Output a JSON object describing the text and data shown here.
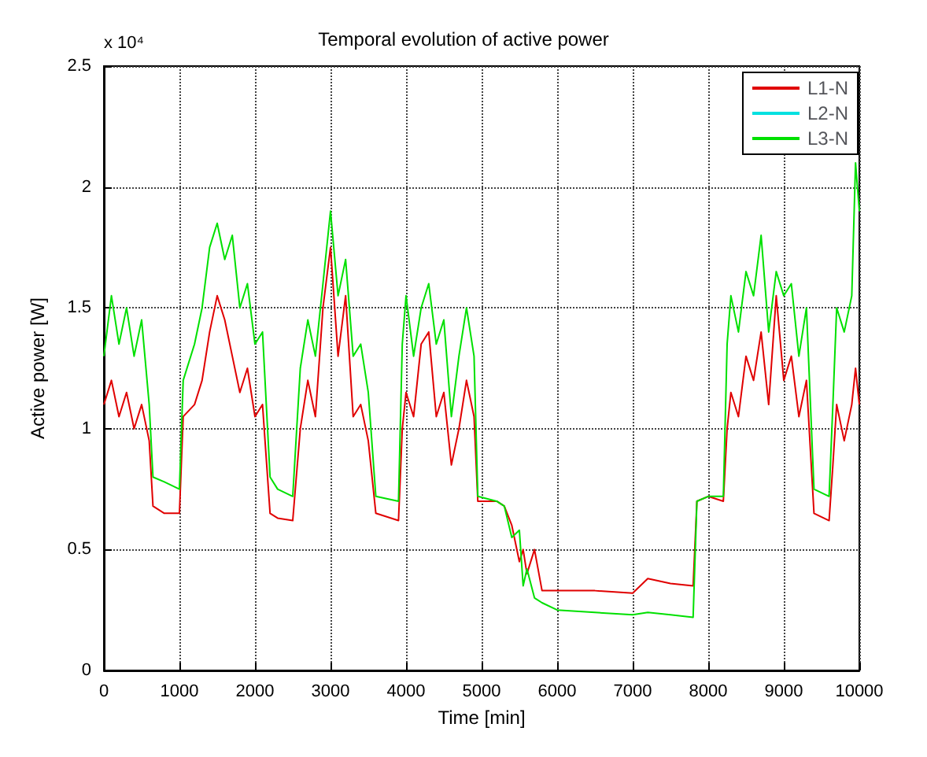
{
  "chart_data": {
    "type": "line",
    "title": "Temporal evolution of active power",
    "xlabel": "Time [min]",
    "ylabel": "Active power [W]",
    "annotations": [
      "x 10⁴"
    ],
    "x": [
      0,
      100,
      200,
      300,
      400,
      500,
      600,
      650,
      800,
      1000,
      1050,
      1200,
      1300,
      1400,
      1500,
      1600,
      1700,
      1800,
      1900,
      2000,
      2100,
      2200,
      2300,
      2500,
      2600,
      2700,
      2800,
      2900,
      3000,
      3100,
      3200,
      3300,
      3400,
      3500,
      3600,
      3900,
      3950,
      4000,
      4100,
      4200,
      4300,
      4400,
      4500,
      4600,
      4700,
      4800,
      4900,
      4950,
      5200,
      5300,
      5400,
      5500,
      5550,
      5600,
      5700,
      5800,
      6000,
      6500,
      7000,
      7200,
      7500,
      7800,
      7850,
      8000,
      8200,
      8250,
      8300,
      8400,
      8500,
      8600,
      8700,
      8800,
      8900,
      9000,
      9100,
      9200,
      9300,
      9400,
      9600,
      9650,
      9700,
      9800,
      9900,
      9950,
      10000
    ],
    "series": [
      {
        "name": "L1-N",
        "color": "#e00000",
        "values": [
          1.1,
          1.2,
          1.05,
          1.15,
          1.0,
          1.1,
          0.95,
          0.68,
          0.65,
          0.65,
          1.05,
          1.1,
          1.2,
          1.4,
          1.55,
          1.45,
          1.3,
          1.15,
          1.25,
          1.05,
          1.1,
          0.65,
          0.63,
          0.62,
          1.0,
          1.2,
          1.05,
          1.5,
          1.75,
          1.3,
          1.55,
          1.05,
          1.1,
          0.95,
          0.65,
          0.62,
          1.0,
          1.15,
          1.05,
          1.35,
          1.4,
          1.05,
          1.15,
          0.85,
          1.0,
          1.2,
          1.05,
          0.7,
          0.7,
          0.68,
          0.6,
          0.45,
          0.5,
          0.4,
          0.5,
          0.33,
          0.33,
          0.33,
          0.32,
          0.38,
          0.36,
          0.35,
          0.7,
          0.72,
          0.7,
          1.0,
          1.15,
          1.05,
          1.3,
          1.2,
          1.4,
          1.1,
          1.55,
          1.2,
          1.3,
          1.05,
          1.2,
          0.65,
          0.62,
          0.85,
          1.1,
          0.95,
          1.1,
          1.25,
          1.1
        ]
      },
      {
        "name": "L2-N",
        "color": "#00e0e0",
        "values": [
          null,
          null,
          null,
          null,
          null,
          null,
          null,
          null,
          null,
          null,
          null,
          null,
          null,
          null,
          null,
          null,
          null,
          null,
          null,
          null,
          null,
          null,
          null,
          null,
          null,
          null,
          null,
          null,
          null,
          null,
          null,
          null,
          null,
          null,
          null,
          null,
          null,
          null,
          null,
          null,
          null,
          null,
          null,
          null,
          null,
          null,
          null,
          null,
          null,
          null,
          null,
          null,
          null,
          null,
          null,
          null,
          null,
          null,
          null,
          null,
          null,
          null,
          null,
          null,
          null,
          null,
          null,
          null,
          null,
          null,
          null,
          null,
          null,
          null,
          null,
          null,
          null,
          null,
          null,
          null,
          null,
          null,
          null,
          null,
          null
        ]
      },
      {
        "name": "L3-N",
        "color": "#00e000",
        "values": [
          1.3,
          1.55,
          1.35,
          1.5,
          1.3,
          1.45,
          1.1,
          0.8,
          0.78,
          0.75,
          1.2,
          1.35,
          1.5,
          1.75,
          1.85,
          1.7,
          1.8,
          1.5,
          1.6,
          1.35,
          1.4,
          0.8,
          0.75,
          0.72,
          1.25,
          1.45,
          1.3,
          1.6,
          1.9,
          1.55,
          1.7,
          1.3,
          1.35,
          1.15,
          0.72,
          0.7,
          1.35,
          1.55,
          1.3,
          1.5,
          1.6,
          1.35,
          1.45,
          1.05,
          1.3,
          1.5,
          1.3,
          0.72,
          0.7,
          0.68,
          0.55,
          0.58,
          0.35,
          0.42,
          0.3,
          0.28,
          0.25,
          0.24,
          0.23,
          0.24,
          0.23,
          0.22,
          0.7,
          0.72,
          0.72,
          1.35,
          1.55,
          1.4,
          1.65,
          1.55,
          1.8,
          1.4,
          1.65,
          1.55,
          1.6,
          1.3,
          1.5,
          0.75,
          0.72,
          1.1,
          1.5,
          1.4,
          1.55,
          2.1,
          1.9
        ]
      }
    ],
    "xlim": [
      0,
      10000
    ],
    "xticks": [
      0,
      1000,
      2000,
      3000,
      4000,
      5000,
      6000,
      7000,
      8000,
      9000,
      10000
    ],
    "ylim": [
      0,
      2.5
    ],
    "yticks": [
      0,
      0.5,
      1,
      1.5,
      2,
      2.5
    ],
    "grid": true,
    "legend": "top right",
    "marker": "none",
    "line_style": "solid"
  }
}
